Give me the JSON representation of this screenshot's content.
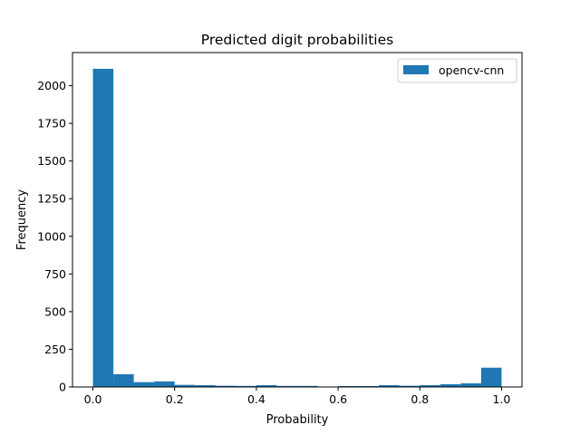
{
  "chart_data": {
    "type": "bar",
    "title": "Predicted digit probabilities",
    "xlabel": "Probability",
    "ylabel": "Frequency",
    "xlim": [
      -0.05,
      1.05
    ],
    "ylim": [
      0,
      2220
    ],
    "bin_edges": [
      0.0,
      0.05,
      0.1,
      0.15,
      0.2,
      0.25,
      0.3,
      0.35,
      0.4,
      0.45,
      0.5,
      0.55,
      0.6,
      0.65,
      0.7,
      0.75,
      0.8,
      0.85,
      0.9,
      0.95,
      1.0
    ],
    "series": [
      {
        "name": "opencv-cnn",
        "color": "#1f77b4",
        "values": [
          2112,
          85,
          32,
          37,
          14,
          12,
          8,
          7,
          12,
          7,
          7,
          2,
          6,
          6,
          12,
          8,
          12,
          18,
          24,
          128
        ]
      }
    ],
    "x_ticks": [
      {
        "value": 0.0,
        "label": "0.0"
      },
      {
        "value": 0.2,
        "label": "0.2"
      },
      {
        "value": 0.4,
        "label": "0.4"
      },
      {
        "value": 0.6,
        "label": "0.6"
      },
      {
        "value": 0.8,
        "label": "0.8"
      },
      {
        "value": 1.0,
        "label": "1.0"
      }
    ],
    "y_ticks": [
      {
        "value": 0,
        "label": "0"
      },
      {
        "value": 250,
        "label": "250"
      },
      {
        "value": 500,
        "label": "500"
      },
      {
        "value": 750,
        "label": "750"
      },
      {
        "value": 1000,
        "label": "1000"
      },
      {
        "value": 1250,
        "label": "1250"
      },
      {
        "value": 1500,
        "label": "1500"
      },
      {
        "value": 1750,
        "label": "1750"
      },
      {
        "value": 2000,
        "label": "2000"
      }
    ],
    "grid": false,
    "legend_position": "top-right"
  }
}
